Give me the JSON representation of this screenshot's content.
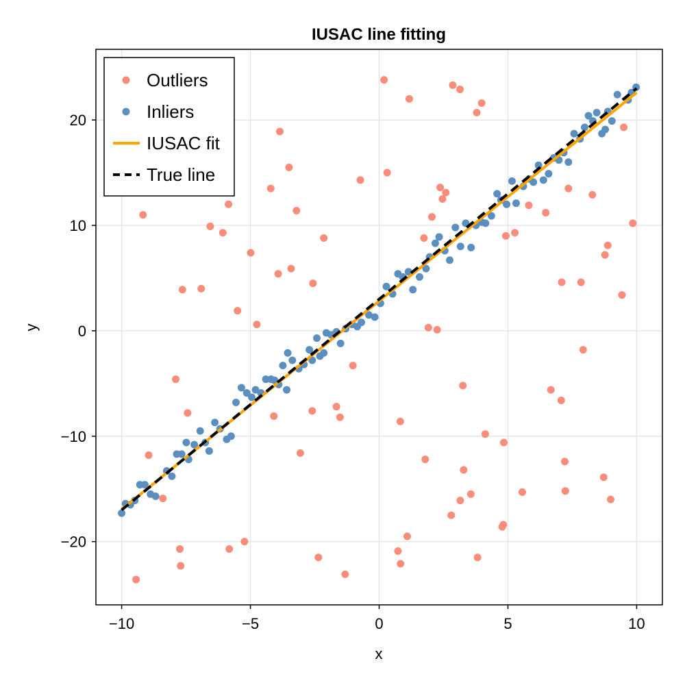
{
  "chart_data": {
    "type": "scatter",
    "title": "IUSAC line fitting",
    "xlabel": "x",
    "ylabel": "y",
    "xlim": [
      -11,
      11
    ],
    "ylim": [
      -26,
      26.7
    ],
    "xticks": [
      -10,
      -5,
      0,
      5,
      10
    ],
    "yticks": [
      -20,
      -10,
      0,
      10,
      20
    ],
    "xtick_labels": [
      "−10",
      "−5",
      "0",
      "5",
      "10"
    ],
    "ytick_labels": [
      "−20",
      "−10",
      "0",
      "10",
      "20"
    ],
    "grid": true,
    "legend_position": "top-left",
    "colors": {
      "outliers": "#fa8c7a",
      "inliers": "#5b8fc0",
      "fit": "#ffa500",
      "true_line": "#000000",
      "grid": "#e5e5e5"
    },
    "legend": [
      {
        "key": "outliers",
        "label": "Outliers",
        "marker": "dot"
      },
      {
        "key": "inliers",
        "label": "Inliers",
        "marker": "dot"
      },
      {
        "key": "fit",
        "label": "IUSAC fit",
        "marker": "line"
      },
      {
        "key": "true_line",
        "label": "True line",
        "marker": "dash"
      }
    ],
    "series": [
      {
        "name": "Outliers",
        "key": "outliers",
        "kind": "scatter",
        "points": [
          [
            -9.44,
            -23.6
          ],
          [
            -9.17,
            11.0
          ],
          [
            -8.95,
            -11.8
          ],
          [
            -8.4,
            -15.9
          ],
          [
            -7.9,
            -4.6
          ],
          [
            -7.74,
            -20.7
          ],
          [
            -7.71,
            -22.3
          ],
          [
            -7.64,
            3.9
          ],
          [
            -7.44,
            -7.8
          ],
          [
            -6.91,
            4.0
          ],
          [
            -6.56,
            9.9
          ],
          [
            -6.07,
            9.3
          ],
          [
            -5.85,
            12.0
          ],
          [
            -5.82,
            -20.7
          ],
          [
            -5.5,
            1.9
          ],
          [
            -5.23,
            -20.0
          ],
          [
            -4.99,
            7.4
          ],
          [
            -4.75,
            0.6
          ],
          [
            -4.21,
            13.5
          ],
          [
            -4.09,
            -8.1
          ],
          [
            -3.92,
            5.4
          ],
          [
            -3.86,
            18.9
          ],
          [
            -3.5,
            15.5
          ],
          [
            -3.42,
            5.9
          ],
          [
            -3.21,
            11.4
          ],
          [
            -3.06,
            -11.6
          ],
          [
            -2.6,
            -7.6
          ],
          [
            -2.57,
            4.5
          ],
          [
            -2.36,
            -21.5
          ],
          [
            -2.15,
            8.8
          ],
          [
            -1.66,
            -7.2
          ],
          [
            -1.52,
            -8.2
          ],
          [
            -1.32,
            -23.1
          ],
          [
            -1.02,
            -3.3
          ],
          [
            -0.73,
            14.3
          ],
          [
            0.19,
            23.8
          ],
          [
            0.31,
            15.0
          ],
          [
            0.73,
            -20.9
          ],
          [
            0.82,
            -8.6
          ],
          [
            0.83,
            -22.1
          ],
          [
            1.09,
            -19.5
          ],
          [
            1.17,
            22.0
          ],
          [
            1.79,
            -12.2
          ],
          [
            1.74,
            8.8
          ],
          [
            1.91,
            0.3
          ],
          [
            2.05,
            10.8
          ],
          [
            2.25,
            0.1
          ],
          [
            2.37,
            13.6
          ],
          [
            2.46,
            12.5
          ],
          [
            2.59,
            13.1
          ],
          [
            2.8,
            -17.5
          ],
          [
            2.86,
            23.3
          ],
          [
            3.14,
            22.9
          ],
          [
            3.15,
            -16.1
          ],
          [
            3.25,
            -5.2
          ],
          [
            3.28,
            -13.2
          ],
          [
            3.56,
            -15.5
          ],
          [
            3.79,
            20.7
          ],
          [
            3.82,
            -21.5
          ],
          [
            3.98,
            21.6
          ],
          [
            4.12,
            -9.8
          ],
          [
            4.78,
            -18.6
          ],
          [
            4.82,
            -18.4
          ],
          [
            4.84,
            -10.6
          ],
          [
            4.92,
            9.0
          ],
          [
            5.27,
            9.3
          ],
          [
            5.56,
            -15.3
          ],
          [
            5.81,
            11.9
          ],
          [
            6.47,
            11.2
          ],
          [
            6.67,
            -5.6
          ],
          [
            7.07,
            -6.6
          ],
          [
            7.09,
            4.6
          ],
          [
            7.21,
            -12.4
          ],
          [
            7.23,
            -15.2
          ],
          [
            7.35,
            13.5
          ],
          [
            7.84,
            4.6
          ],
          [
            7.92,
            -1.8
          ],
          [
            8.28,
            12.9
          ],
          [
            8.72,
            -13.9
          ],
          [
            8.77,
            7.2
          ],
          [
            8.88,
            8.1
          ],
          [
            8.99,
            -16.0
          ],
          [
            9.43,
            3.4
          ],
          [
            9.5,
            19.3
          ],
          [
            9.85,
            10.2
          ]
        ]
      },
      {
        "name": "Inliers",
        "key": "inliers",
        "kind": "scatter",
        "points": [
          [
            -10.0,
            -17.3
          ],
          [
            -9.85,
            -16.4
          ],
          [
            -9.66,
            -16.5
          ],
          [
            -9.49,
            -16.1
          ],
          [
            -9.29,
            -14.6
          ],
          [
            -9.1,
            -14.6
          ],
          [
            -8.88,
            -15.5
          ],
          [
            -8.68,
            -15.7
          ],
          [
            -8.25,
            -13.3
          ],
          [
            -8.05,
            -13.8
          ],
          [
            -7.86,
            -11.7
          ],
          [
            -7.67,
            -11.7
          ],
          [
            -7.49,
            -10.6
          ],
          [
            -7.4,
            -12.2
          ],
          [
            -7.18,
            -10.8
          ],
          [
            -6.95,
            -9.5
          ],
          [
            -6.75,
            -10.6
          ],
          [
            -6.6,
            -11.4
          ],
          [
            -6.38,
            -8.7
          ],
          [
            -6.18,
            -9.3
          ],
          [
            -5.92,
            -10.3
          ],
          [
            -5.75,
            -10.0
          ],
          [
            -5.56,
            -6.8
          ],
          [
            -5.35,
            -5.4
          ],
          [
            -5.14,
            -5.9
          ],
          [
            -4.95,
            -6.3
          ],
          [
            -4.8,
            -5.6
          ],
          [
            -4.59,
            -5.9
          ],
          [
            -4.4,
            -4.6
          ],
          [
            -4.2,
            -4.6
          ],
          [
            -4.06,
            -4.7
          ],
          [
            -3.9,
            -5.1
          ],
          [
            -3.74,
            -3.3
          ],
          [
            -3.59,
            -5.6
          ],
          [
            -3.55,
            -2.1
          ],
          [
            -3.37,
            -2.8
          ],
          [
            -3.12,
            -3.6
          ],
          [
            -2.92,
            -3.2
          ],
          [
            -2.71,
            -1.8
          ],
          [
            -2.6,
            -2.8
          ],
          [
            -2.42,
            -0.7
          ],
          [
            -2.3,
            -2.4
          ],
          [
            -2.15,
            -2.1
          ],
          [
            -2.05,
            -0.2
          ],
          [
            -1.86,
            -0.4
          ],
          [
            -1.66,
            -0.1
          ],
          [
            -1.5,
            -1.2
          ],
          [
            -1.3,
            0.2
          ],
          [
            -1.05,
            0.6
          ],
          [
            -0.85,
            0.4
          ],
          [
            -0.69,
            0.8
          ],
          [
            -0.4,
            1.5
          ],
          [
            -0.17,
            1.3
          ],
          [
            0.05,
            2.6
          ],
          [
            0.28,
            4.2
          ],
          [
            0.52,
            3.5
          ],
          [
            0.73,
            5.4
          ],
          [
            0.92,
            5.1
          ],
          [
            1.14,
            5.6
          ],
          [
            1.31,
            3.9
          ],
          [
            1.57,
            5.1
          ],
          [
            1.82,
            5.9
          ],
          [
            1.96,
            7.0
          ],
          [
            2.18,
            8.3
          ],
          [
            2.33,
            8.9
          ],
          [
            2.55,
            7.6
          ],
          [
            2.74,
            6.7
          ],
          [
            2.96,
            9.8
          ],
          [
            3.16,
            8.0
          ],
          [
            3.36,
            10.2
          ],
          [
            3.57,
            7.9
          ],
          [
            3.76,
            10.0
          ],
          [
            3.98,
            10.3
          ],
          [
            4.13,
            10.2
          ],
          [
            4.36,
            10.9
          ],
          [
            4.58,
            13.0
          ],
          [
            4.73,
            12.4
          ],
          [
            4.95,
            12.0
          ],
          [
            5.16,
            14.2
          ],
          [
            5.32,
            12.1
          ],
          [
            5.6,
            13.7
          ],
          [
            5.83,
            14.4
          ],
          [
            5.99,
            14.1
          ],
          [
            6.19,
            15.7
          ],
          [
            6.38,
            14.3
          ],
          [
            6.58,
            14.9
          ],
          [
            6.78,
            16.4
          ],
          [
            6.98,
            16.2
          ],
          [
            7.17,
            16.9
          ],
          [
            7.35,
            16.0
          ],
          [
            7.57,
            18.7
          ],
          [
            7.8,
            18.2
          ],
          [
            7.98,
            19.3
          ],
          [
            8.13,
            20.4
          ],
          [
            8.3,
            19.9
          ],
          [
            8.45,
            20.7
          ],
          [
            8.65,
            18.7
          ],
          [
            8.78,
            19.1
          ],
          [
            8.88,
            20.8
          ],
          [
            9.04,
            19.9
          ],
          [
            9.25,
            22.4
          ],
          [
            9.67,
            21.9
          ],
          [
            9.8,
            22.6
          ],
          [
            9.98,
            23.1
          ]
        ]
      },
      {
        "name": "IUSAC fit",
        "key": "fit",
        "kind": "line",
        "points": [
          [
            -10.0,
            -16.95
          ],
          [
            10.0,
            22.6
          ]
        ]
      },
      {
        "name": "True line",
        "key": "true_line",
        "kind": "dash",
        "points": [
          [
            -10.0,
            -17.0
          ],
          [
            10.0,
            23.0
          ]
        ]
      }
    ]
  }
}
